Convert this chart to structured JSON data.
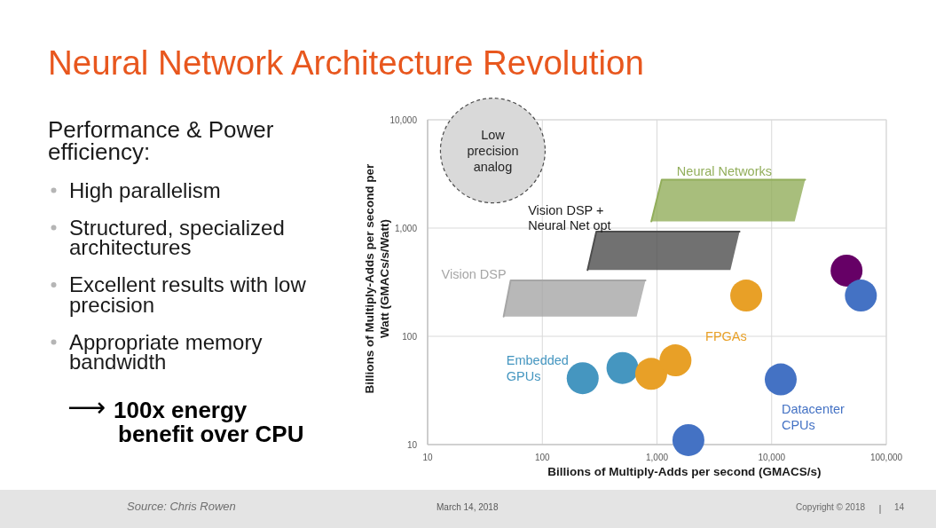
{
  "chart_data": [
    {
      "type": "other",
      "title": "Performance & Power efficiency:",
      "annotations": [
        "High parallelism",
        "Structured, specialized architectures",
        "Excellent results with low precision",
        "Appropriate memory bandwidth",
        "⟶ 100x energy benefit over CPU"
      ]
    },
    {
      "type": "scatter",
      "title": "Neural Network Architecture Revolution",
      "xlabel": "Billions of Multiply-Adds per second (GMACS/s)",
      "ylabel": "Billions of Multiply-Adds per second per Watt (GMACs/s/Watt)",
      "log": "xy",
      "xlim": [
        10,
        100000
      ],
      "ylim": [
        10,
        10000
      ],
      "xticks": [
        10,
        100,
        {
          "value": 1000,
          "label": "1,000"
        },
        {
          "value": 10000,
          "label": "10,000"
        },
        {
          "value": 100000,
          "label": "100,000"
        }
      ],
      "yticks": [
        10,
        100,
        {
          "value": 1000,
          "label": "1,000"
        },
        {
          "value": 10000,
          "label": "10,000"
        }
      ],
      "grid": true,
      "series": [
        {
          "type": "line",
          "name": "Vision DSP",
          "color": "#a6a6a6",
          "x": [
            46,
            53,
            665,
            794
          ],
          "values": [
            152,
            328,
            328,
            328
          ],
          "lower": [
            152,
            152,
            152,
            328
          ],
          "upper": [
            152,
            328,
            328,
            328
          ]
        },
        {
          "type": "line",
          "name": "Vision DSP + Neural Net opt",
          "color": "#4d4d4d",
          "x": [
            248,
            296,
            4370,
            5250
          ],
          "values": [
            409,
            927,
            927,
            927
          ],
          "lower": [
            409,
            409,
            409,
            927
          ],
          "upper": [
            409,
            927,
            927,
            927
          ]
        },
        {
          "type": "line",
          "name": "Neural Networks",
          "color": "#92ae5b",
          "x": [
            893,
            1100,
            15900,
            19600
          ],
          "values": [
            1150,
            2800,
            2800,
            2800
          ],
          "lower": [
            1150,
            1150,
            1150,
            2800
          ],
          "upper": [
            1150,
            2800,
            2800,
            2800
          ]
        },
        {
          "type": "bubble",
          "name": "Low precision analog",
          "color": "#d9d9d9",
          "x": [
            37
          ],
          "values": [
            5200
          ],
          "sizes": [
            1
          ],
          "line_style": "dashed"
        },
        {
          "type": "scatter",
          "name": "Embedded GPUs",
          "color": "#4596c0",
          "marker": "circle",
          "x": [
            225,
            500
          ],
          "values": [
            41,
            51
          ]
        },
        {
          "type": "scatter",
          "name": "FPGAs",
          "color": "#e8a027",
          "marker": "circle",
          "x": [
            890,
            1450,
            6000
          ],
          "values": [
            45,
            60,
            238
          ]
        },
        {
          "type": "scatter",
          "name": "Datacenter CPUs",
          "color": "#4472c4",
          "marker": "circle",
          "x": [
            12000,
            1880
          ],
          "values": [
            40,
            11
          ]
        },
        {
          "type": "scatter",
          "color": "#660066",
          "marker": "circle",
          "x": [
            45000
          ],
          "values": [
            405
          ]
        },
        {
          "type": "scatter",
          "color": "#4472c4",
          "marker": "circle",
          "x": [
            60000
          ],
          "values": [
            238
          ]
        }
      ],
      "annotations": [
        "Source: Chris Rowen",
        "March 14, 2018",
        "Copyright © 2018",
        "14"
      ]
    }
  ]
}
